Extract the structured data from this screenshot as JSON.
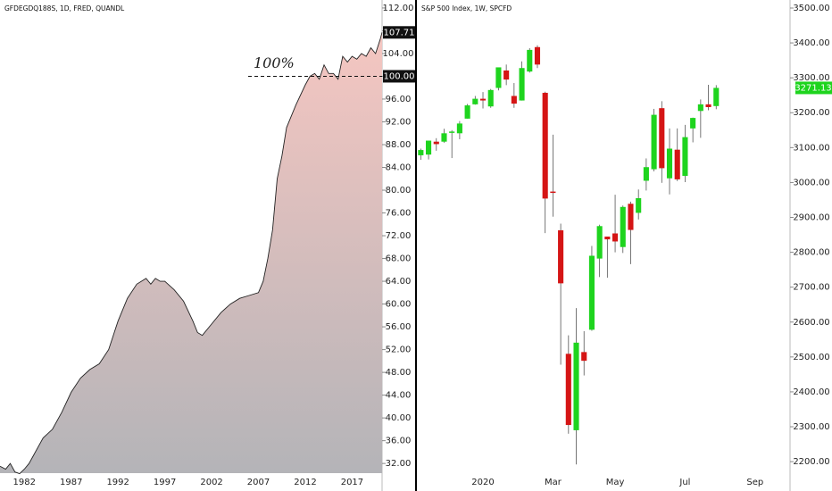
{
  "chart_data": [
    {
      "type": "area",
      "title": "GFDEGDQ188S, 1D, FRED, QUANDL",
      "color": "#222222",
      "fill_top": "#f5c6c1",
      "fill_bottom": "#b4b4b8",
      "x": [
        1979.4,
        1980,
        1980.5,
        1981,
        1981.5,
        1982,
        1982.5,
        1983,
        1984,
        1985,
        1986,
        1987,
        1988,
        1989,
        1990,
        1991,
        1992,
        1993,
        1994,
        1995,
        1995.5,
        1996,
        1996.5,
        1997,
        1998,
        1999,
        2000,
        2000.5,
        2001,
        2002,
        2003,
        2004,
        2005,
        2006,
        2007,
        2007.5,
        2008,
        2008.5,
        2009,
        2009.5,
        2010,
        2011,
        2012,
        2012.5,
        2013,
        2013.5,
        2014,
        2014.5,
        2015,
        2015.5,
        2016,
        2016.5,
        2017,
        2017.5,
        2018,
        2018.5,
        2019,
        2019.5,
        2020,
        2020.2
      ],
      "values": [
        31.5,
        31,
        32,
        30.5,
        30.2,
        31,
        32,
        33.5,
        36.5,
        38,
        41,
        44.5,
        47,
        48.5,
        49.5,
        52,
        57,
        61,
        63.5,
        64.5,
        63.5,
        64.5,
        64,
        64,
        62.5,
        60.5,
        57,
        55,
        54.5,
        56.5,
        58.5,
        60,
        61,
        61.5,
        62,
        64,
        68,
        73,
        82,
        86,
        91,
        95,
        98.5,
        100,
        100.5,
        99.5,
        102,
        100.5,
        100.5,
        99.5,
        103.5,
        102.5,
        103.5,
        103,
        104,
        103.5,
        105,
        104,
        106.5,
        107.71
      ],
      "xlim": [
        1979.4,
        2020.2
      ],
      "xticks": [
        1982,
        1987,
        1992,
        1997,
        2002,
        2007,
        2012,
        2017
      ],
      "ylim": [
        30.3,
        113.4
      ],
      "yticks": [
        {
          "value": 32,
          "label": "32.00"
        },
        {
          "value": 36,
          "label": "36.00"
        },
        {
          "value": 40,
          "label": "40.00"
        },
        {
          "value": 44,
          "label": "44.00"
        },
        {
          "value": 48,
          "label": "48.00"
        },
        {
          "value": 52,
          "label": "52.00"
        },
        {
          "value": 56,
          "label": "56.00"
        },
        {
          "value": 60,
          "label": "60.00"
        },
        {
          "value": 64,
          "label": "64.00"
        },
        {
          "value": 68,
          "label": "68.00"
        },
        {
          "value": 72,
          "label": "72.00"
        },
        {
          "value": 76,
          "label": "76.00"
        },
        {
          "value": 80,
          "label": "80.00"
        },
        {
          "value": 84,
          "label": "84.00"
        },
        {
          "value": 88,
          "label": "88.00"
        },
        {
          "value": 92,
          "label": "92.00"
        },
        {
          "value": 96,
          "label": "96.00"
        },
        {
          "value": 100,
          "label": "100.00"
        },
        {
          "value": 104,
          "label": "104.00"
        },
        {
          "value": 108,
          "label": "108.00"
        },
        {
          "value": 112,
          "label": "112.00"
        }
      ],
      "reference_line": {
        "value": 100,
        "label": "100.00",
        "annotation": "100%"
      }
    },
    {
      "type": "candlestick",
      "title": "S&P 500 Index, 1W, SPCFD",
      "up_color": "#1ed41e",
      "down_color": "#d51515",
      "categories": [
        null,
        null,
        null,
        null,
        null,
        null,
        null,
        null,
        "2020",
        null,
        null,
        null,
        null,
        null,
        null,
        null,
        null,
        "Mar",
        null,
        null,
        null,
        null,
        null,
        null,
        null,
        "May",
        null,
        null,
        null,
        null,
        null,
        null,
        null,
        null,
        "Jul",
        null,
        null,
        null,
        null,
        null,
        null,
        null,
        null,
        "Sep",
        null,
        null,
        null,
        null
      ],
      "open": [
        3078,
        3080,
        3117,
        3117,
        3144,
        3141,
        3183,
        3224,
        3240,
        3218,
        3271,
        3321,
        3248,
        3235,
        3318,
        3388,
        3257,
        2974,
        2863,
        2509,
        2290,
        2514,
        2578,
        2782,
        2845,
        2854,
        2815,
        2939,
        2913,
        3005,
        3038,
        3213,
        3012,
        3094,
        3019,
        3155,
        3205,
        3224,
        3219,
        null,
        null,
        null,
        null,
        null,
        null,
        null,
        null,
        null
      ],
      "high": [
        3097,
        3120,
        3127,
        3154,
        3150,
        3176,
        3225,
        3248,
        3259,
        3268,
        3329,
        3338,
        3285,
        3347,
        3385,
        3393,
        3260,
        3137,
        2882,
        2562,
        2640,
        2574,
        2818,
        2879,
        2845,
        2965,
        2934,
        2945,
        2980,
        3069,
        3211,
        3233,
        3155,
        3155,
        3165,
        3186,
        3238,
        3280,
        3279,
        null,
        null,
        null,
        null,
        null,
        null,
        null,
        null,
        null
      ],
      "low": [
        3065,
        3066,
        3091,
        3114,
        3070,
        3124,
        3183,
        3223,
        3212,
        3214,
        3264,
        3279,
        3214,
        3235,
        3315,
        3328,
        2855,
        2902,
        2478,
        2280,
        2192,
        2447,
        2575,
        2729,
        2727,
        2800,
        2798,
        2766,
        2894,
        2977,
        3032,
        2999,
        2966,
        3004,
        3001,
        3115,
        3128,
        3207,
        3210,
        null,
        null,
        null,
        null,
        null,
        null,
        null,
        null,
        null
      ],
      "close": [
        3093,
        3120,
        3110,
        3141,
        3146,
        3169,
        3221,
        3240,
        3235,
        3265,
        3330,
        3295,
        3226,
        3328,
        3380,
        3338,
        2954,
        2972,
        2711,
        2305,
        2541,
        2489,
        2790,
        2875,
        2837,
        2831,
        2930,
        2864,
        2955,
        3044,
        3194,
        3041,
        3097,
        3009,
        3130,
        3185,
        3224,
        3216,
        3271.13,
        null,
        null,
        null,
        null,
        null,
        null,
        null,
        null,
        null
      ],
      "ylim": [
        2167,
        3523
      ],
      "yticks": [
        {
          "value": 2200,
          "label": "2200.00"
        },
        {
          "value": 2300,
          "label": "2300.00"
        },
        {
          "value": 2400,
          "label": "2400.00"
        },
        {
          "value": 2500,
          "label": "2500.00"
        },
        {
          "value": 2600,
          "label": "2600.00"
        },
        {
          "value": 2700,
          "label": "2700.00"
        },
        {
          "value": 2800,
          "label": "2800.00"
        },
        {
          "value": 2900,
          "label": "2900.00"
        },
        {
          "value": 3000,
          "label": "3000.00"
        },
        {
          "value": 3100,
          "label": "3100.00"
        },
        {
          "value": 3200,
          "label": "3200.00"
        },
        {
          "value": 3300,
          "label": "3300.00"
        },
        {
          "value": 3400,
          "label": "3400.00"
        },
        {
          "value": 3500,
          "label": "3500.00"
        }
      ]
    }
  ]
}
